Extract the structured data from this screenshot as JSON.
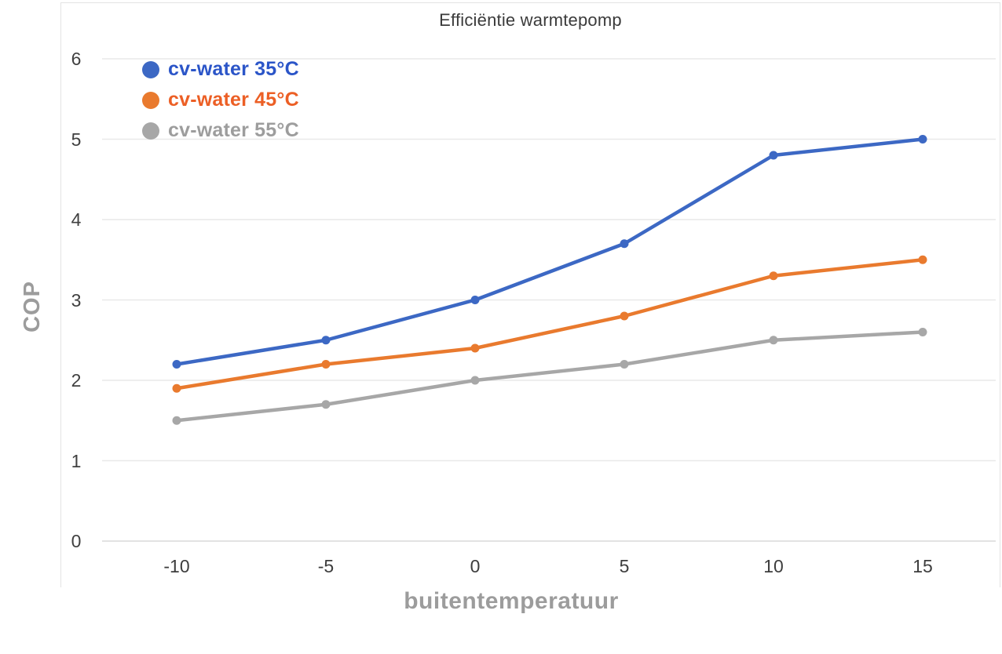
{
  "chart_data": {
    "type": "line",
    "title": "Efficiëntie warmtepomp",
    "xlabel": "buitentemperatuur",
    "ylabel": "COP",
    "x": [
      -10,
      -5,
      0,
      5,
      10,
      15
    ],
    "yticks": [
      0,
      1,
      2,
      3,
      4,
      5,
      6
    ],
    "ylim": [
      0,
      6
    ],
    "xlim": [
      -10,
      15
    ],
    "grid": true,
    "legend_position": "top-left inside plot",
    "series": [
      {
        "name": "cv-water 35°C",
        "color": "#3C68C4",
        "label_color": "#2B55C8",
        "values": [
          2.2,
          2.5,
          3.0,
          3.7,
          4.8,
          5.0
        ]
      },
      {
        "name": "cv-water 45°C",
        "color": "#E97A2E",
        "label_color": "#EC5F25",
        "values": [
          1.9,
          2.2,
          2.4,
          2.8,
          3.3,
          3.5
        ]
      },
      {
        "name": "cv-water 55°C",
        "color": "#A7A7A7",
        "label_color": "#9D9D9D",
        "values": [
          1.5,
          1.7,
          2.0,
          2.2,
          2.5,
          2.6
        ]
      }
    ]
  }
}
